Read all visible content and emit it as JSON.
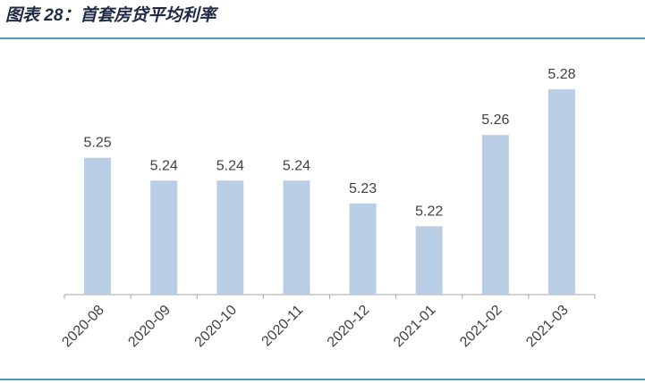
{
  "chart_data": {
    "type": "bar",
    "title": "图表 28：首套房贷平均利率",
    "categories": [
      "2020-08",
      "2020-09",
      "2020-10",
      "2020-11",
      "2020-12",
      "2021-01",
      "2021-02",
      "2021-03"
    ],
    "values": [
      5.25,
      5.24,
      5.24,
      5.24,
      5.23,
      5.22,
      5.26,
      5.28
    ],
    "color": "#b9cde5",
    "ylim": [
      5.19,
      5.3
    ]
  }
}
